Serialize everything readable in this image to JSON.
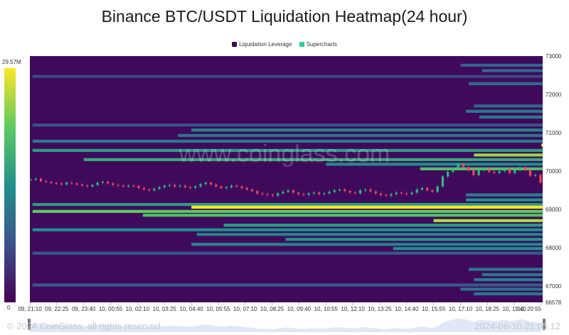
{
  "chart_data": {
    "type": "heatmap",
    "title": "Binance BTC/USDT Liquidation Heatmap(24 hour)",
    "legend": [
      {
        "name": "Liquidation Leverage",
        "color": "#3a0a55"
      },
      {
        "name": "Supercharts",
        "color": "#2ecc8f"
      }
    ],
    "colorbar": {
      "max_label": "29.57M",
      "min_label": "0",
      "min": 0,
      "max": 29570000
    },
    "colorscale": [
      "#440154",
      "#3b528b",
      "#21918c",
      "#5ec962",
      "#fde725"
    ],
    "x_ticks": [
      "09, 21:10",
      "09, 22:25",
      "09, 23:40",
      "10, 00:55",
      "10, 02:10",
      "10, 03:25",
      "10, 04:40",
      "10, 05:55",
      "10, 07:10",
      "10, 08:25",
      "10, 09:40",
      "10, 10:55",
      "10, 12:10",
      "10, 13:25",
      "10, 14:40",
      "10, 15:55",
      "10, 17:10",
      "10, 18:25",
      "10, 19:40",
      "10, 20:55"
    ],
    "y_ticks": [
      73000,
      72000,
      71000,
      70000,
      69000,
      68000,
      67000,
      66578
    ],
    "ylim": [
      66578,
      73000
    ],
    "bands": [
      {
        "price": 72880,
        "start": 20.3,
        "end": 23.0,
        "intensity": 0.35
      },
      {
        "price": 72760,
        "start": 16.0,
        "end": 23.0,
        "intensity": 0.32
      },
      {
        "price": 72620,
        "start": 16.8,
        "end": 23.0,
        "intensity": 0.35
      },
      {
        "price": 72470,
        "start": 0.1,
        "end": 23.0,
        "intensity": 0.22
      },
      {
        "price": 72280,
        "start": 16.3,
        "end": 23.0,
        "intensity": 0.35
      },
      {
        "price": 71700,
        "start": 16.5,
        "end": 23.0,
        "intensity": 0.35
      },
      {
        "price": 71560,
        "start": 16.2,
        "end": 23.0,
        "intensity": 0.4
      },
      {
        "price": 71410,
        "start": 16.7,
        "end": 23.0,
        "intensity": 0.4
      },
      {
        "price": 71200,
        "start": 0.1,
        "end": 23.0,
        "intensity": 0.25
      },
      {
        "price": 71070,
        "start": 6.0,
        "end": 23.0,
        "intensity": 0.45
      },
      {
        "price": 70930,
        "start": 5.5,
        "end": 23.0,
        "intensity": 0.38
      },
      {
        "price": 70780,
        "start": 0.1,
        "end": 23.0,
        "intensity": 0.4
      },
      {
        "price": 70680,
        "start": 19.0,
        "end": 23.0,
        "intensity": 0.95
      },
      {
        "price": 70540,
        "start": 0.1,
        "end": 23.0,
        "intensity": 0.55
      },
      {
        "price": 70420,
        "start": 16.5,
        "end": 23.0,
        "intensity": 0.85
      },
      {
        "price": 70300,
        "start": 2.0,
        "end": 23.0,
        "intensity": 0.6
      },
      {
        "price": 70180,
        "start": 11.0,
        "end": 23.0,
        "intensity": 0.48
      },
      {
        "price": 70060,
        "start": 14.5,
        "end": 23.0,
        "intensity": 0.7
      },
      {
        "price": 69380,
        "start": 16.2,
        "end": 23.0,
        "intensity": 0.42
      },
      {
        "price": 69250,
        "start": 16.2,
        "end": 23.0,
        "intensity": 0.5
      },
      {
        "price": 69130,
        "start": 0.1,
        "end": 23.0,
        "intensity": 0.55
      },
      {
        "price": 69060,
        "start": 6.0,
        "end": 23.0,
        "intensity": 1.0
      },
      {
        "price": 68950,
        "start": 0.1,
        "end": 23.0,
        "intensity": 0.75
      },
      {
        "price": 68850,
        "start": 4.2,
        "end": 23.0,
        "intensity": 0.7
      },
      {
        "price": 68710,
        "start": 15.0,
        "end": 23.0,
        "intensity": 0.88
      },
      {
        "price": 68590,
        "start": 7.2,
        "end": 23.0,
        "intensity": 0.55
      },
      {
        "price": 68470,
        "start": 0.1,
        "end": 23.0,
        "intensity": 0.5
      },
      {
        "price": 68350,
        "start": 6.2,
        "end": 23.0,
        "intensity": 0.45
      },
      {
        "price": 68220,
        "start": 9.5,
        "end": 23.0,
        "intensity": 0.52
      },
      {
        "price": 68090,
        "start": 6.0,
        "end": 23.0,
        "intensity": 0.45
      },
      {
        "price": 67980,
        "start": 13.5,
        "end": 23.0,
        "intensity": 0.5
      },
      {
        "price": 67860,
        "start": 0.1,
        "end": 23.0,
        "intensity": 0.28
      },
      {
        "price": 67440,
        "start": 16.3,
        "end": 23.0,
        "intensity": 0.4
      },
      {
        "price": 67300,
        "start": 16.8,
        "end": 23.0,
        "intensity": 0.4
      },
      {
        "price": 67170,
        "start": 16.5,
        "end": 23.0,
        "intensity": 0.42
      },
      {
        "price": 67030,
        "start": 0.1,
        "end": 23.0,
        "intensity": 0.28
      },
      {
        "price": 66920,
        "start": 16.0,
        "end": 23.0,
        "intensity": 0.38
      },
      {
        "price": 66800,
        "start": 16.5,
        "end": 23.0,
        "intensity": 0.4
      }
    ],
    "price_series": [
      69780,
      69800,
      69740,
      69720,
      69690,
      69680,
      69650,
      69700,
      69680,
      69650,
      69620,
      69600,
      69640,
      69700,
      69720,
      69680,
      69640,
      69620,
      69600,
      69620,
      69610,
      69560,
      69520,
      69500,
      69540,
      69580,
      69620,
      69640,
      69600,
      69620,
      69580,
      69560,
      69600,
      69660,
      69700,
      69650,
      69600,
      69560,
      69580,
      69620,
      69600,
      69560,
      69520,
      69480,
      69420,
      69400,
      69380,
      69360,
      69420,
      69460,
      69500,
      69440,
      69400,
      69380,
      69420,
      69440,
      69400,
      69420,
      69460,
      69500,
      69520,
      69480,
      69440,
      69420,
      69500,
      69520,
      69470,
      69420,
      69380,
      69360,
      69400,
      69440,
      69420,
      69400,
      69440,
      69520,
      69560,
      69500,
      69460,
      69600,
      69860,
      69980,
      70060,
      70180,
      70100,
      70020,
      69900,
      70020,
      70050,
      69980,
      69950,
      70000,
      70050,
      69950,
      70020,
      70100,
      70020,
      69880,
      69900,
      69700
    ],
    "footer": {
      "copyright": "© 2024 CoinGlass, all rights reserved",
      "timestamp": "2024-06-10 21:05:12",
      "watermark": "www.coinglass.com"
    }
  }
}
